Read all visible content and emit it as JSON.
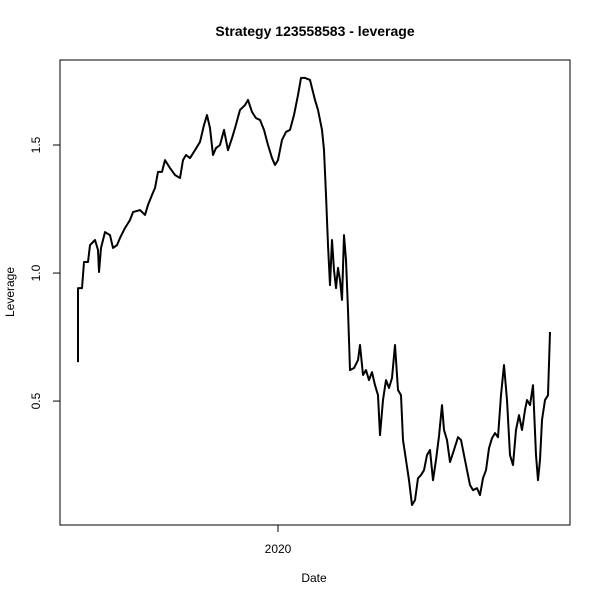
{
  "chart_data": {
    "type": "line",
    "title": "Strategy 123558583 - leverage",
    "x_label": "Date",
    "y_label": "Leverage",
    "x": [
      2019.0,
      2019.0,
      2019.02,
      2019.03,
      2019.05,
      2019.06,
      2019.085,
      2019.1,
      2019.105,
      2019.115,
      2019.135,
      2019.16,
      2019.175,
      2019.195,
      2019.21,
      2019.235,
      2019.26,
      2019.275,
      2019.31,
      2019.335,
      2019.35,
      2019.37,
      2019.385,
      2019.4,
      2019.42,
      2019.435,
      2019.46,
      2019.485,
      2019.51,
      2019.525,
      2019.54,
      2019.56,
      2019.585,
      2019.61,
      2019.63,
      2019.645,
      2019.66,
      2019.675,
      2019.69,
      2019.71,
      2019.73,
      2019.75,
      2019.77,
      2019.785,
      2019.81,
      2019.835,
      2019.85,
      2019.87,
      2019.89,
      2019.91,
      2019.93,
      2019.95,
      2019.97,
      2019.985,
      2020.0,
      2020.02,
      2020.04,
      2020.06,
      2020.08,
      2020.1,
      2020.115,
      2020.135,
      2020.16,
      2020.185,
      2020.2,
      2020.22,
      2020.23,
      2020.24,
      2020.25,
      2020.26,
      2020.27,
      2020.28,
      2020.29,
      2020.3,
      2020.31,
      2020.32,
      2020.33,
      2020.34,
      2020.35,
      2020.36,
      2020.38,
      2020.4,
      2020.41,
      2020.425,
      2020.44,
      2020.455,
      2020.47,
      2020.485,
      2020.5,
      2020.51,
      2020.525,
      2020.54,
      2020.555,
      2020.57,
      2020.585,
      2020.6,
      2020.615,
      2020.625,
      2020.64,
      2020.655,
      2020.67,
      2020.685,
      2020.7,
      2020.715,
      2020.73,
      2020.745,
      2020.76,
      2020.775,
      2020.79,
      2020.805,
      2020.82,
      2020.83,
      2020.845,
      2020.86,
      2020.88,
      2020.9,
      2020.915,
      2020.93,
      2020.945,
      2020.96,
      2020.975,
      2020.995,
      2021.01,
      2021.025,
      2021.04,
      2021.055,
      2021.07,
      2021.085,
      2021.1,
      2021.115,
      2021.13,
      2021.145,
      2021.16,
      2021.175,
      2021.19,
      2021.205,
      2021.22,
      2021.235,
      2021.245,
      2021.26,
      2021.275,
      2021.29,
      2021.3,
      2021.31,
      2021.32,
      2021.335,
      2021.35,
      2021.36
    ],
    "series": [
      {
        "name": "Leverage",
        "color": "#000000",
        "values": [
          0.652,
          0.941,
          0.941,
          1.043,
          1.043,
          1.109,
          1.129,
          1.09,
          1.004,
          1.098,
          1.16,
          1.148,
          1.098,
          1.109,
          1.137,
          1.176,
          1.207,
          1.238,
          1.246,
          1.227,
          1.266,
          1.305,
          1.332,
          1.395,
          1.395,
          1.441,
          1.41,
          1.383,
          1.371,
          1.441,
          1.461,
          1.449,
          1.48,
          1.512,
          1.578,
          1.617,
          1.566,
          1.461,
          1.488,
          1.5,
          1.559,
          1.48,
          1.527,
          1.566,
          1.637,
          1.656,
          1.676,
          1.629,
          1.605,
          1.598,
          1.559,
          1.5,
          1.449,
          1.422,
          1.441,
          1.52,
          1.551,
          1.559,
          1.617,
          1.695,
          1.762,
          1.762,
          1.754,
          1.676,
          1.637,
          1.559,
          1.48,
          1.305,
          1.109,
          0.953,
          1.129,
          1.012,
          0.941,
          1.02,
          0.973,
          0.895,
          1.148,
          1.051,
          0.855,
          0.621,
          0.629,
          0.66,
          0.719,
          0.602,
          0.621,
          0.582,
          0.613,
          0.562,
          0.523,
          0.367,
          0.504,
          0.582,
          0.551,
          0.59,
          0.719,
          0.543,
          0.523,
          0.348,
          0.27,
          0.191,
          0.094,
          0.113,
          0.199,
          0.211,
          0.23,
          0.289,
          0.309,
          0.191,
          0.27,
          0.363,
          0.484,
          0.387,
          0.348,
          0.262,
          0.309,
          0.359,
          0.348,
          0.289,
          0.23,
          0.172,
          0.152,
          0.16,
          0.133,
          0.199,
          0.23,
          0.316,
          0.355,
          0.375,
          0.359,
          0.523,
          0.641,
          0.504,
          0.289,
          0.25,
          0.387,
          0.445,
          0.387,
          0.465,
          0.504,
          0.484,
          0.562,
          0.289,
          0.191,
          0.27,
          0.426,
          0.504,
          0.523,
          0.77
        ]
      }
    ],
    "xlim": [
      2018.91,
      2021.46
    ],
    "ylim": [
      0.016,
      1.832
    ],
    "xticks": [
      2020
    ],
    "yticks": [
      0.5,
      {
        "value": 1,
        "label": "1.0"
      },
      1.5
    ]
  }
}
